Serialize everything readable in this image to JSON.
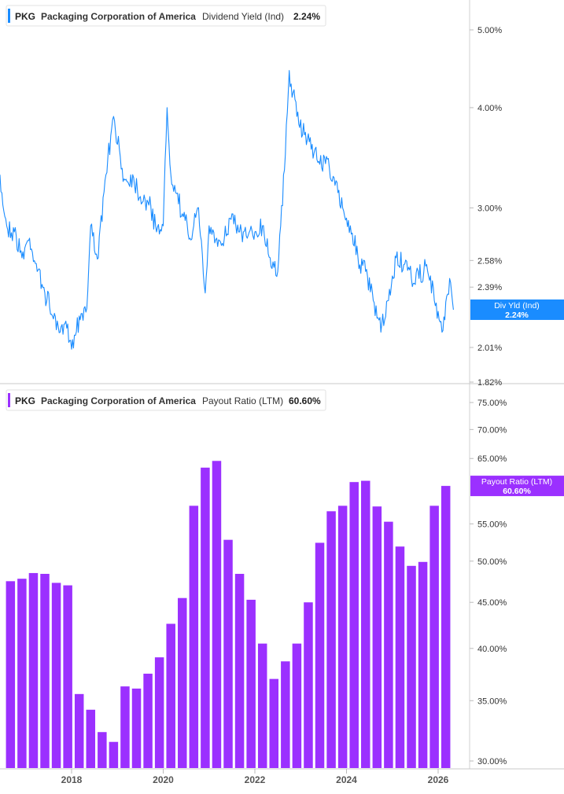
{
  "chart_data": [
    {
      "type": "line",
      "ticker": "PKG",
      "company": "Packaging Corporation of America",
      "metric": "Dividend Yield (Ind)",
      "current_value_label": "2.24%",
      "color": "#1a8cff",
      "y_scale": "log",
      "ylim": [
        1.82,
        5.6
      ],
      "y_ticks": [
        "5.00%",
        "4.00%",
        "3.00%",
        "2.58%",
        "2.39%",
        "2.01%",
        "1.82%"
      ],
      "y_tick_values": [
        5.0,
        4.0,
        3.0,
        2.58,
        2.39,
        2.01,
        1.82
      ],
      "end_badge": {
        "label": "Div Yld (Ind)",
        "value": "2.24%",
        "y": 2.24
      },
      "hidden_tick_label": "2.24%",
      "series": [
        {
          "x": [
            "2016-06",
            "2016-08",
            "2016-10",
            "2016-12",
            "2017-02",
            "2017-04",
            "2017-06",
            "2017-08",
            "2017-10",
            "2017-12",
            "2018-01",
            "2018-03",
            "2018-05",
            "2018-06",
            "2018-08",
            "2018-10",
            "2018-12",
            "2019-01",
            "2019-03",
            "2019-05",
            "2019-07",
            "2019-09",
            "2019-11",
            "2020-01",
            "2020-02",
            "2020-03",
            "2020-04",
            "2020-06",
            "2020-08",
            "2020-10",
            "2020-12",
            "2021-01",
            "2021-03",
            "2021-05",
            "2021-07",
            "2021-09",
            "2021-11",
            "2022-01",
            "2022-03",
            "2022-05",
            "2022-07",
            "2022-09",
            "2022-10",
            "2022-12",
            "2023-02",
            "2023-04",
            "2023-06",
            "2023-08",
            "2023-10",
            "2023-12",
            "2024-02",
            "2024-04",
            "2024-06",
            "2024-08",
            "2024-10",
            "2024-12",
            "2025-02",
            "2025-04",
            "2025-06",
            "2025-08",
            "2025-10",
            "2025-12",
            "2026-02",
            "2026-04",
            "2026-05"
          ],
          "y": [
            3.3,
            2.85,
            2.8,
            2.6,
            2.75,
            2.5,
            2.35,
            2.2,
            2.1,
            2.15,
            2.0,
            2.2,
            2.25,
            2.85,
            2.6,
            3.3,
            3.9,
            3.6,
            3.25,
            3.3,
            3.1,
            3.05,
            2.85,
            2.85,
            4.0,
            3.3,
            3.2,
            2.95,
            2.75,
            3.0,
            2.35,
            2.85,
            2.75,
            2.75,
            2.95,
            2.8,
            2.75,
            2.8,
            2.85,
            2.6,
            2.5,
            3.5,
            4.45,
            3.9,
            3.7,
            3.6,
            3.4,
            3.45,
            3.2,
            3.0,
            2.85,
            2.6,
            2.5,
            2.3,
            2.1,
            2.3,
            2.6,
            2.55,
            2.45,
            2.45,
            2.55,
            2.3,
            2.1,
            2.45,
            2.24
          ]
        }
      ]
    },
    {
      "type": "bar",
      "ticker": "PKG",
      "company": "Packaging Corporation of America",
      "metric": "Payout Ratio (LTM)",
      "current_value_label": "60.60%",
      "color": "#9b30ff",
      "y_scale": "log",
      "ylim": [
        29.8,
        77
      ],
      "y_ticks": [
        "75.00%",
        "70.00%",
        "65.00%",
        "55.00%",
        "50.00%",
        "45.00%",
        "40.00%",
        "35.00%",
        "30.00%"
      ],
      "y_tick_values": [
        75,
        70,
        65,
        55,
        50,
        45,
        40,
        35,
        30
      ],
      "end_badge": {
        "label": "Payout Ratio (LTM)",
        "value": "60.60%",
        "y": 60.6
      },
      "hidden_tick_label": "60.00%",
      "x": [
        "2016-09",
        "2016-12",
        "2017-03",
        "2017-06",
        "2017-09",
        "2017-12",
        "2018-03",
        "2018-06",
        "2018-09",
        "2018-12",
        "2019-03",
        "2019-06",
        "2019-09",
        "2019-12",
        "2020-03",
        "2020-06",
        "2020-09",
        "2020-12",
        "2021-03",
        "2021-06",
        "2021-09",
        "2021-12",
        "2022-03",
        "2022-06",
        "2022-09",
        "2022-12",
        "2023-03",
        "2023-06",
        "2023-09",
        "2023-12",
        "2024-03",
        "2024-06",
        "2024-09",
        "2024-12",
        "2025-03",
        "2025-06",
        "2025-09",
        "2025-12",
        "2026-03"
      ],
      "values": [
        47.5,
        47.8,
        48.5,
        48.4,
        47.3,
        47.0,
        35.6,
        34.2,
        32.3,
        31.5,
        36.3,
        36.1,
        37.5,
        39.1,
        42.6,
        45.5,
        57.6,
        63.5,
        64.6,
        52.8,
        48.4,
        45.3,
        40.5,
        37.0,
        38.7,
        40.5,
        45.0,
        52.4,
        56.8,
        57.6,
        61.2,
        61.4,
        57.5,
        55.3,
        51.9,
        49.4,
        49.9,
        57.6,
        60.6
      ],
      "x_ticks": [
        "2018",
        "2020",
        "2022",
        "2024",
        "2026"
      ]
    }
  ]
}
